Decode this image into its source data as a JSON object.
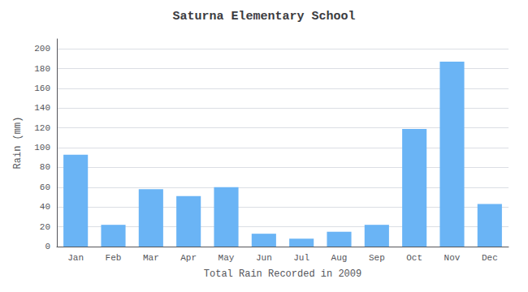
{
  "chart_data": {
    "type": "bar",
    "title": "Saturna Elementary School",
    "xlabel": "Total Rain Recorded in 2009",
    "ylabel": "Rain (mm)",
    "categories": [
      "Jan",
      "Feb",
      "Mar",
      "Apr",
      "May",
      "Jun",
      "Jul",
      "Aug",
      "Sep",
      "Oct",
      "Nov",
      "Dec"
    ],
    "values": [
      93,
      22,
      58,
      51,
      60,
      13,
      8,
      15,
      22,
      119,
      187,
      43
    ],
    "color": "#6ab4f5",
    "ylim": [
      0,
      210
    ],
    "yticks": [
      0,
      20,
      40,
      60,
      80,
      100,
      120,
      140,
      160,
      180,
      200
    ],
    "grid": true
  }
}
